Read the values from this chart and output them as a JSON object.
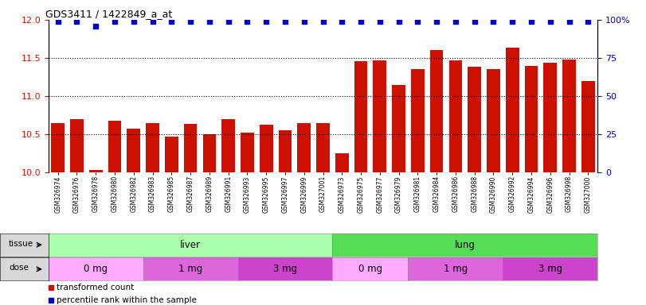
{
  "title": "GDS3411 / 1422849_a_at",
  "samples": [
    "GSM326974",
    "GSM326976",
    "GSM326978",
    "GSM326980",
    "GSM326982",
    "GSM326983",
    "GSM326985",
    "GSM326987",
    "GSM326989",
    "GSM326991",
    "GSM326993",
    "GSM326995",
    "GSM326997",
    "GSM326999",
    "GSM327001",
    "GSM326973",
    "GSM326975",
    "GSM326977",
    "GSM326979",
    "GSM326981",
    "GSM326984",
    "GSM326986",
    "GSM326988",
    "GSM326990",
    "GSM326992",
    "GSM326994",
    "GSM326996",
    "GSM326998",
    "GSM327000"
  ],
  "bar_values": [
    10.65,
    10.7,
    10.03,
    10.68,
    10.57,
    10.65,
    10.47,
    10.64,
    10.5,
    10.7,
    10.52,
    10.62,
    10.55,
    10.65,
    10.65,
    10.25,
    11.46,
    11.47,
    11.15,
    11.35,
    11.6,
    11.47,
    11.38,
    11.35,
    11.63,
    11.4,
    11.44,
    11.48,
    11.2
  ],
  "percentile_values": [
    99,
    99,
    96,
    99,
    99,
    99,
    99,
    99,
    99,
    99,
    99,
    99,
    99,
    99,
    99,
    99,
    99,
    99,
    99,
    99,
    99,
    99,
    99,
    99,
    99,
    99,
    99,
    99,
    99
  ],
  "tissue_groups": [
    {
      "label": "liver",
      "start": 0,
      "end": 15,
      "color": "#aaffaa"
    },
    {
      "label": "lung",
      "start": 15,
      "end": 29,
      "color": "#55dd55"
    }
  ],
  "dose_groups": [
    {
      "label": "0 mg",
      "start": 0,
      "end": 5,
      "color": "#ffaaff"
    },
    {
      "label": "1 mg",
      "start": 5,
      "end": 10,
      "color": "#dd66dd"
    },
    {
      "label": "3 mg",
      "start": 10,
      "end": 15,
      "color": "#cc44cc"
    },
    {
      "label": "0 mg",
      "start": 15,
      "end": 19,
      "color": "#ffaaff"
    },
    {
      "label": "1 mg",
      "start": 19,
      "end": 24,
      "color": "#dd66dd"
    },
    {
      "label": "3 mg",
      "start": 24,
      "end": 29,
      "color": "#cc44cc"
    }
  ],
  "bar_color": "#cc1100",
  "percentile_color": "#0000cc",
  "ylim_left": [
    10.0,
    12.0
  ],
  "ylim_right": [
    0,
    100
  ],
  "yticks_left": [
    10.0,
    10.5,
    11.0,
    11.5,
    12.0
  ],
  "yticks_right": [
    0,
    25,
    50,
    75,
    100
  ],
  "hgrid_values": [
    10.5,
    11.0,
    11.5
  ],
  "background_color": "#ffffff",
  "tick_label_color_left": "#cc1100",
  "tick_label_color_right": "#0000cc",
  "bar_width": 0.7,
  "label_area_color": "#d8d8d8"
}
